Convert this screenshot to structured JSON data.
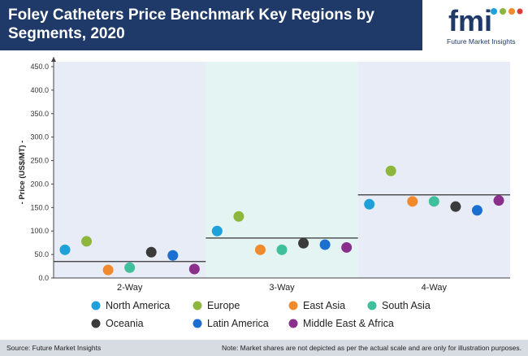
{
  "header": {
    "title": "Foley Catheters Price Benchmark Key Regions by Segments, 2020",
    "logo_text": "fmi",
    "logo_caption": "Future Market Insights"
  },
  "footer": {
    "source": "Source: Future Market Insights",
    "note": "Note: Market shares are not depicted as per the actual scale and are only for illustration purposes."
  },
  "colors": {
    "header_bg": "#1f3a68",
    "panel_a": "#e8ecf7",
    "panel_b": "#e4f4f2"
  },
  "chart_data": {
    "type": "scatter",
    "title": "",
    "ylabel": "- Price (US$/MT) -",
    "ylim": [
      0,
      450
    ],
    "yticks": [
      "0.0",
      "50.0",
      "100.0",
      "150.0",
      "200.0",
      "250.0",
      "300.0",
      "350.0",
      "400.0",
      "450.0"
    ],
    "categories": [
      "2-Way",
      "3-Way",
      "4-Way"
    ],
    "averages": [
      35,
      85,
      177
    ],
    "series": [
      {
        "name": "North America",
        "color": "#1ea1d9",
        "values": [
          60,
          100,
          157
        ]
      },
      {
        "name": "Europe",
        "color": "#8db63c",
        "values": [
          78,
          131,
          228
        ]
      },
      {
        "name": "East Asia",
        "color": "#f08a2c",
        "values": [
          17,
          60,
          163
        ]
      },
      {
        "name": "South Asia",
        "color": "#3fbf9b",
        "values": [
          22,
          60,
          163
        ]
      },
      {
        "name": "Oceania",
        "color": "#3b3b3b",
        "values": [
          55,
          74,
          152
        ]
      },
      {
        "name": "Latin America",
        "color": "#1a6fd1",
        "values": [
          48,
          71,
          144
        ]
      },
      {
        "name": "Middle East & Africa",
        "color": "#8a2f8c",
        "values": [
          19,
          65,
          165
        ]
      }
    ]
  }
}
